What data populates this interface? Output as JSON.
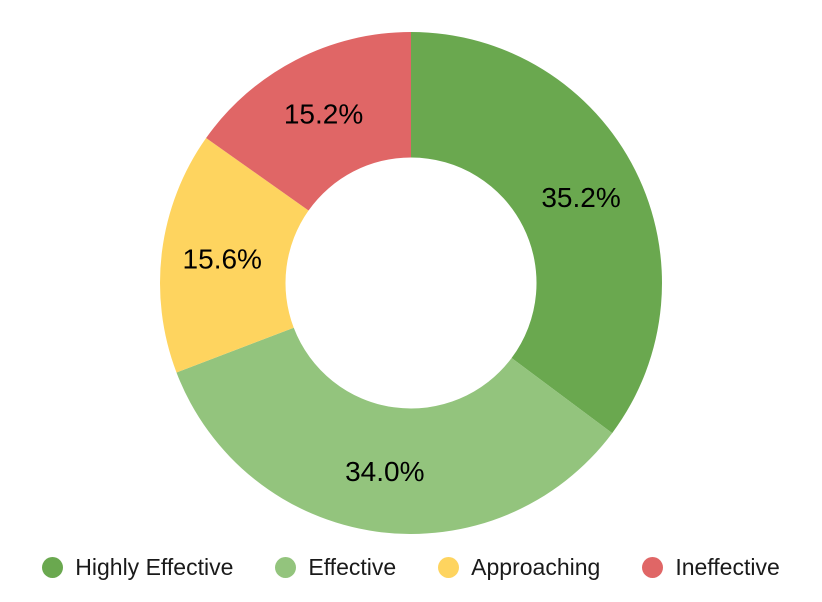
{
  "chart_data": {
    "type": "pie",
    "variant": "donut",
    "categories": [
      "Highly Effective",
      "Effective",
      "Approaching",
      "Ineffective"
    ],
    "values": [
      35.2,
      34.0,
      15.6,
      15.2
    ],
    "slice_labels": [
      "35.2%",
      "34.0%",
      "15.6%",
      "15.2%"
    ],
    "colors": [
      "#6aa84f",
      "#93c47d",
      "#fed45f",
      "#e06666"
    ],
    "title": "",
    "start_angle_deg": 0,
    "direction": "clockwise",
    "inner_radius_ratio": 0.5,
    "legend_position": "bottom",
    "label_color": "#000000",
    "background_color": "#ffffff"
  },
  "legend": {
    "items": [
      {
        "label": "Highly Effective",
        "color": "#6aa84f"
      },
      {
        "label": "Effective",
        "color": "#93c47d"
      },
      {
        "label": "Approaching",
        "color": "#fed45f"
      },
      {
        "label": "Ineffective",
        "color": "#e06666"
      }
    ]
  }
}
